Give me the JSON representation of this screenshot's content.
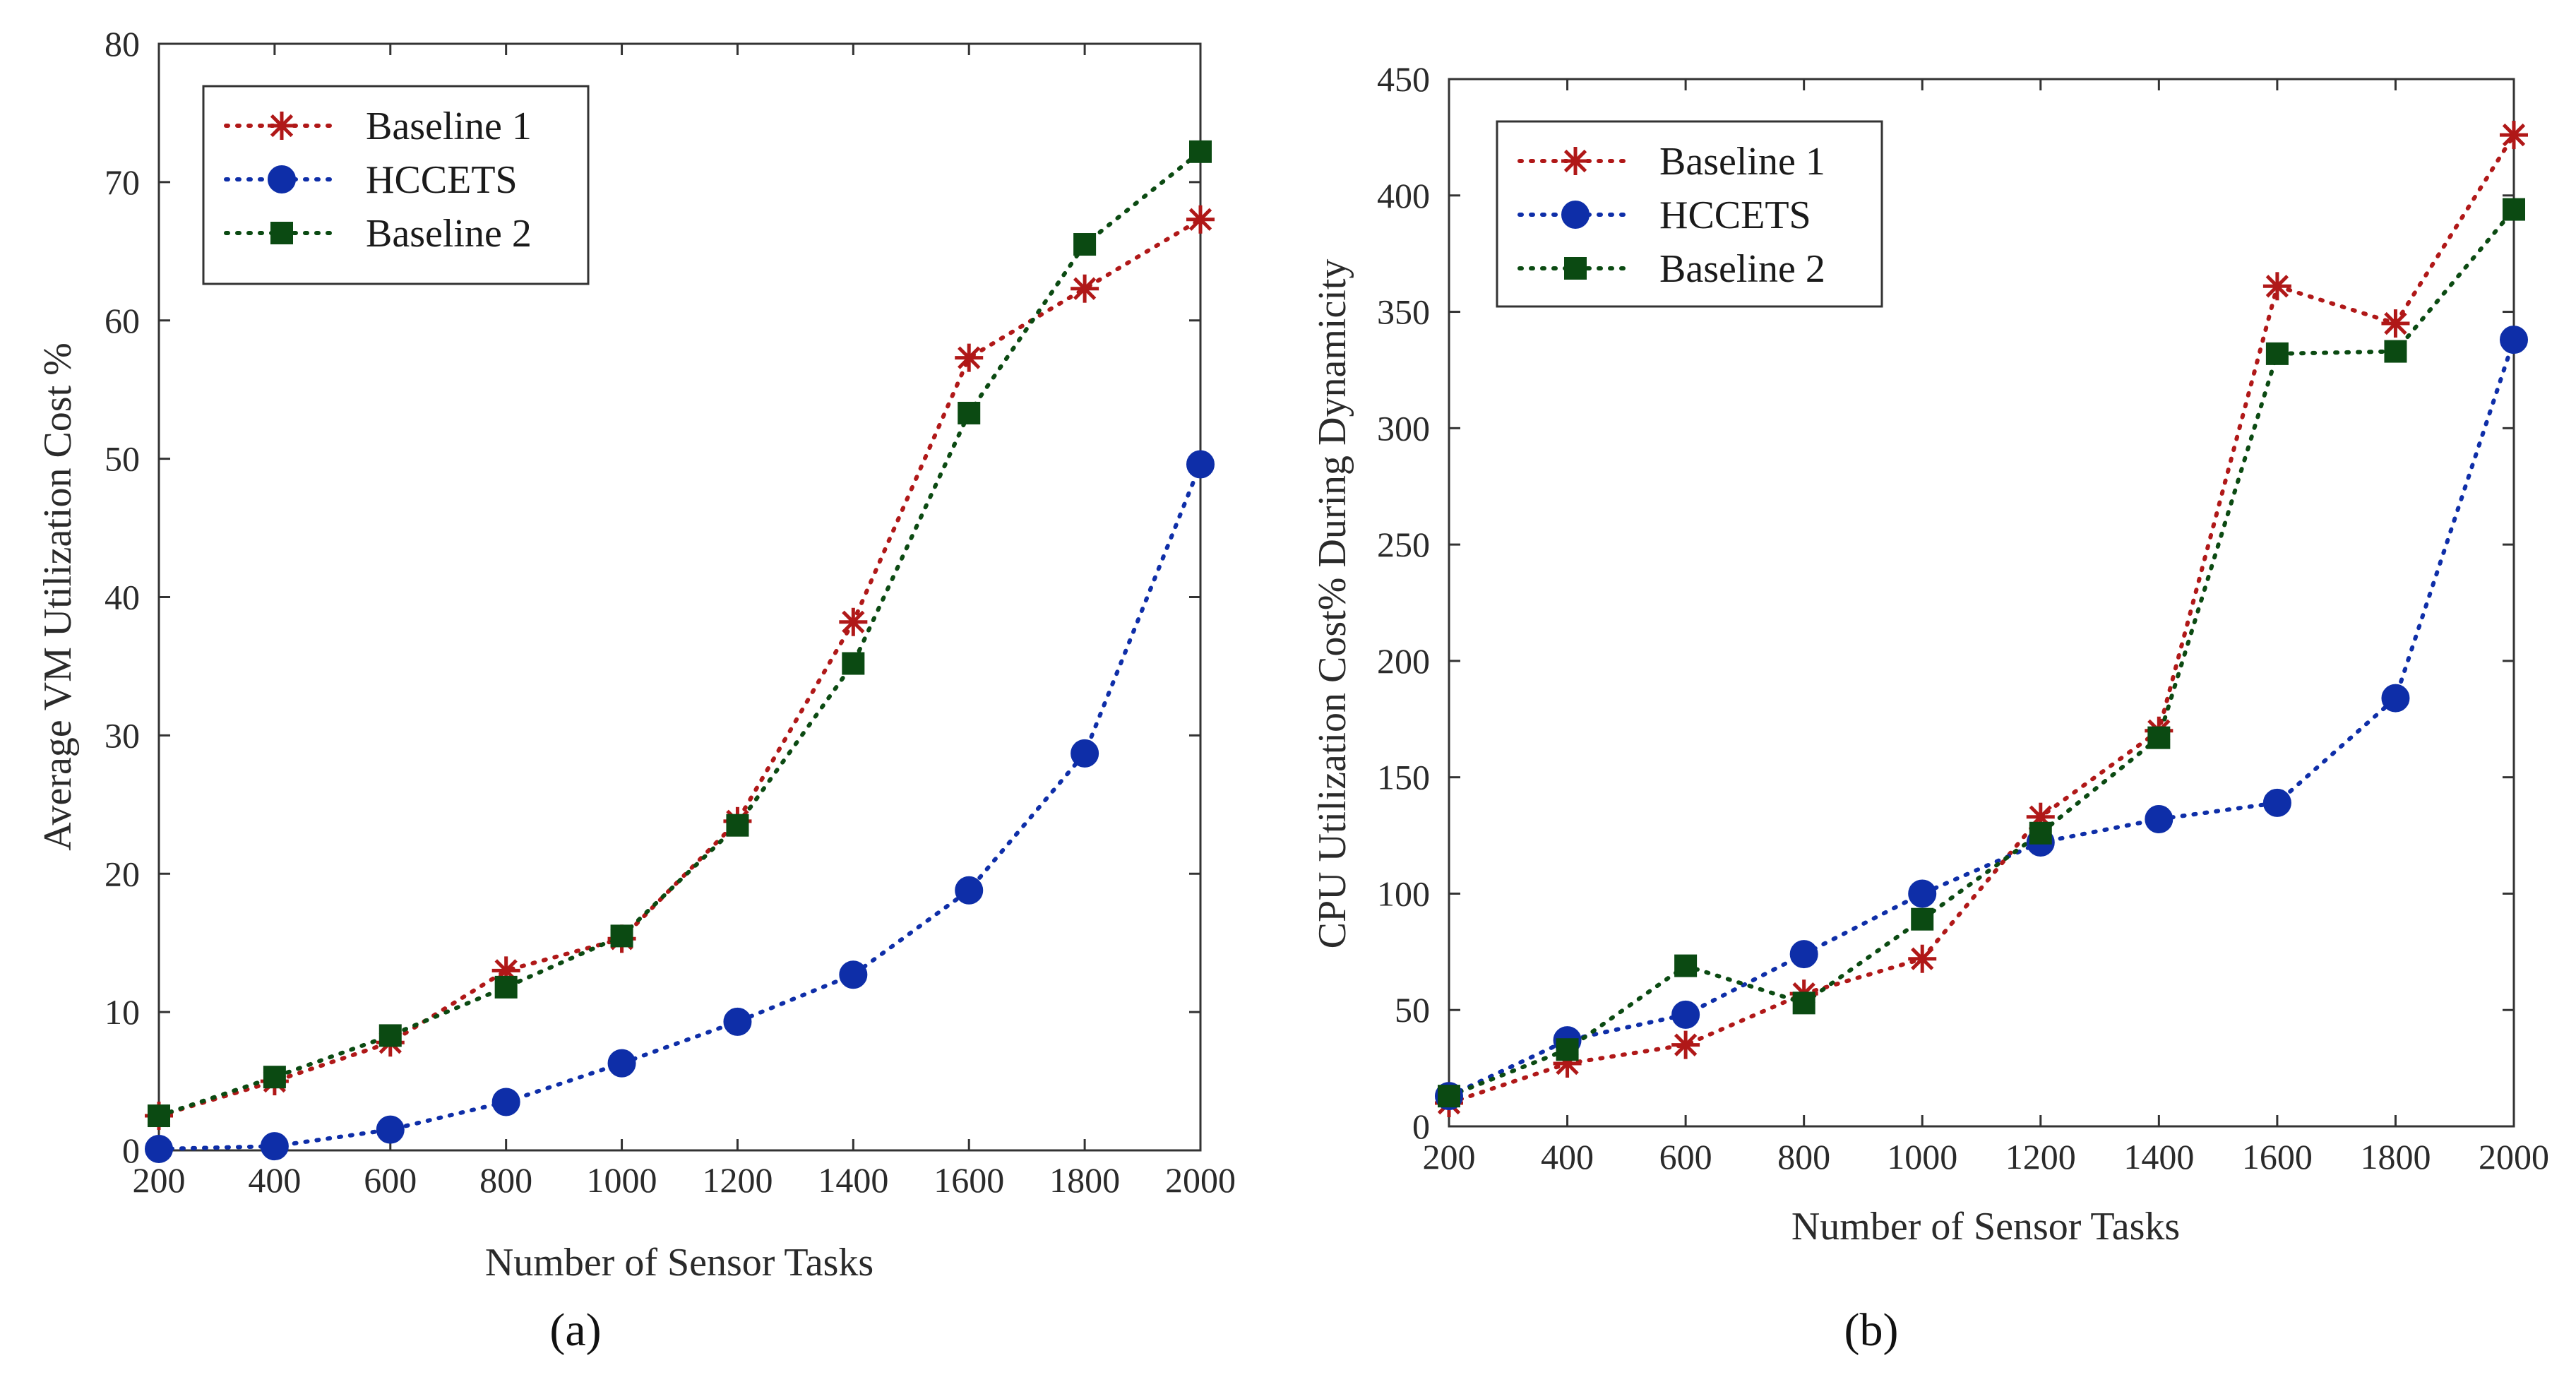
{
  "chart_data": [
    {
      "panel": "a",
      "panel_label": "(a)",
      "type": "line",
      "title": "",
      "xlabel": "Number of Sensor Tasks",
      "ylabel": "Average VM Utilization Cost %",
      "xlim": [
        200,
        2000
      ],
      "ylim": [
        0,
        80
      ],
      "x": [
        200,
        400,
        600,
        800,
        1000,
        1200,
        1400,
        1600,
        1800,
        2000
      ],
      "xticks": [
        200,
        400,
        600,
        800,
        1000,
        1200,
        1400,
        1600,
        1800,
        2000
      ],
      "yticks": [
        0,
        10,
        20,
        30,
        40,
        50,
        60,
        70,
        80
      ],
      "grid": false,
      "legend_position": "top-left",
      "series": [
        {
          "name": "Baseline 1",
          "color": "#b01818",
          "marker": "asterisk",
          "values": [
            2.5,
            5.0,
            7.8,
            13.0,
            15.3,
            23.8,
            38.2,
            57.3,
            62.3,
            67.3
          ]
        },
        {
          "name": "HCCETS",
          "color": "#0e2ea8",
          "marker": "circle",
          "values": [
            0.1,
            0.3,
            1.5,
            3.5,
            6.3,
            9.3,
            12.7,
            18.8,
            28.7,
            49.6
          ]
        },
        {
          "name": "Baseline 2",
          "color": "#0b4a12",
          "marker": "square",
          "values": [
            2.5,
            5.3,
            8.3,
            11.8,
            15.5,
            23.5,
            35.2,
            53.3,
            65.5,
            72.2
          ]
        }
      ]
    },
    {
      "panel": "b",
      "panel_label": "(b)",
      "type": "line",
      "title": "",
      "xlabel": "Number of Sensor Tasks",
      "ylabel": "CPU Utilization Cost% During Dynamicity",
      "xlim": [
        200,
        2000
      ],
      "ylim": [
        0,
        450
      ],
      "x": [
        200,
        400,
        600,
        800,
        1000,
        1200,
        1400,
        1600,
        1800,
        2000
      ],
      "xticks": [
        200,
        400,
        600,
        800,
        1000,
        1200,
        1400,
        1600,
        1800,
        2000
      ],
      "yticks": [
        0,
        50,
        100,
        150,
        200,
        250,
        300,
        350,
        400,
        450
      ],
      "grid": false,
      "legend_position": "top-left",
      "series": [
        {
          "name": "Baseline 1",
          "color": "#b01818",
          "marker": "asterisk",
          "values": [
            10,
            27,
            35,
            57,
            72,
            133,
            170,
            361,
            345,
            426
          ]
        },
        {
          "name": "HCCETS",
          "color": "#0e2ea8",
          "marker": "circle",
          "values": [
            13,
            37,
            48,
            74,
            100,
            122,
            132,
            139,
            184,
            338
          ]
        },
        {
          "name": "Baseline 2",
          "color": "#0b4a12",
          "marker": "square",
          "values": [
            13,
            33,
            69,
            53,
            89,
            126,
            167,
            332,
            333,
            394
          ]
        }
      ]
    }
  ]
}
